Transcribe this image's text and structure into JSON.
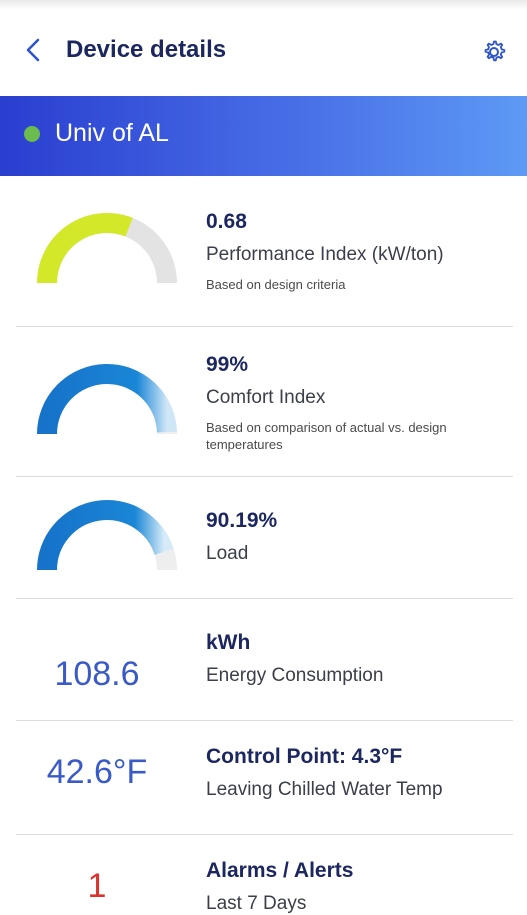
{
  "header": {
    "title": "Device details"
  },
  "banner": {
    "name": "Univ of AL",
    "status_color": "#6bbb4e"
  },
  "metrics": {
    "performance": {
      "value": "0.68",
      "label": "Performance Index (kW/ton)",
      "sub": "Based on design criteria",
      "level": 0.62
    },
    "comfort": {
      "value": "99%",
      "label": "Comfort Index",
      "sub": "Based on comparison of actual vs. design temperatures",
      "level": 0.99
    },
    "load": {
      "value": "90.19%",
      "label": "Load",
      "level": 0.9019
    },
    "energy": {
      "big": "108.6",
      "value": "kWh",
      "label": "Energy Consumption"
    },
    "control": {
      "big": "42.6°F",
      "value": "Control Point: 4.3°F",
      "label": "Leaving Chilled Water Temp"
    },
    "alarms": {
      "big": "1",
      "value": "Alarms / Alerts",
      "label": "Last 7 Days"
    }
  },
  "icons": {
    "back": "chevron-left-icon",
    "settings": "gear-icon"
  }
}
